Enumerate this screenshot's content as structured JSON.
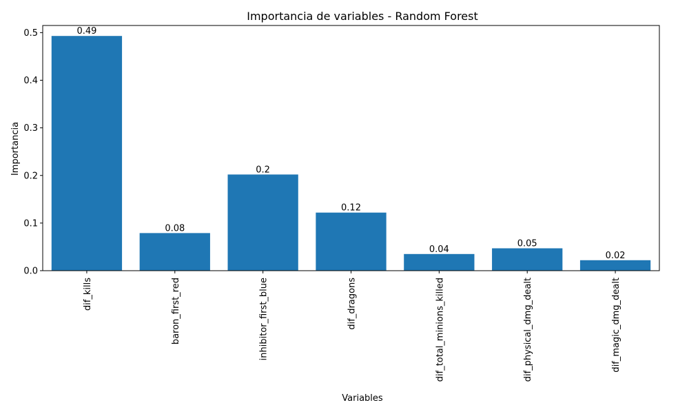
{
  "chart_data": {
    "type": "bar",
    "title": "Importancia de variables - Random Forest",
    "xlabel": "Variables",
    "ylabel": "Importancia",
    "categories": [
      "dif_kills",
      "baron_first_red",
      "inhibitor_first_blue",
      "dif_dragons",
      "dif_total_minions_killed",
      "dif_physical_dmg_dealt",
      "dif_magic_dmg_dealt"
    ],
    "values": [
      0.493,
      0.079,
      0.202,
      0.122,
      0.035,
      0.047,
      0.022
    ],
    "data_labels": [
      "0.49",
      "0.08",
      "0.2",
      "0.12",
      "0.04",
      "0.05",
      "0.02"
    ],
    "ylim": [
      0,
      0.515
    ],
    "yticks": [
      0.0,
      0.1,
      0.2,
      0.3,
      0.4,
      0.5
    ],
    "ytick_labels": [
      "0.0",
      "0.1",
      "0.2",
      "0.3",
      "0.4",
      "0.5"
    ],
    "bar_color": "#1f77b4",
    "grid": false,
    "legend": "none"
  }
}
